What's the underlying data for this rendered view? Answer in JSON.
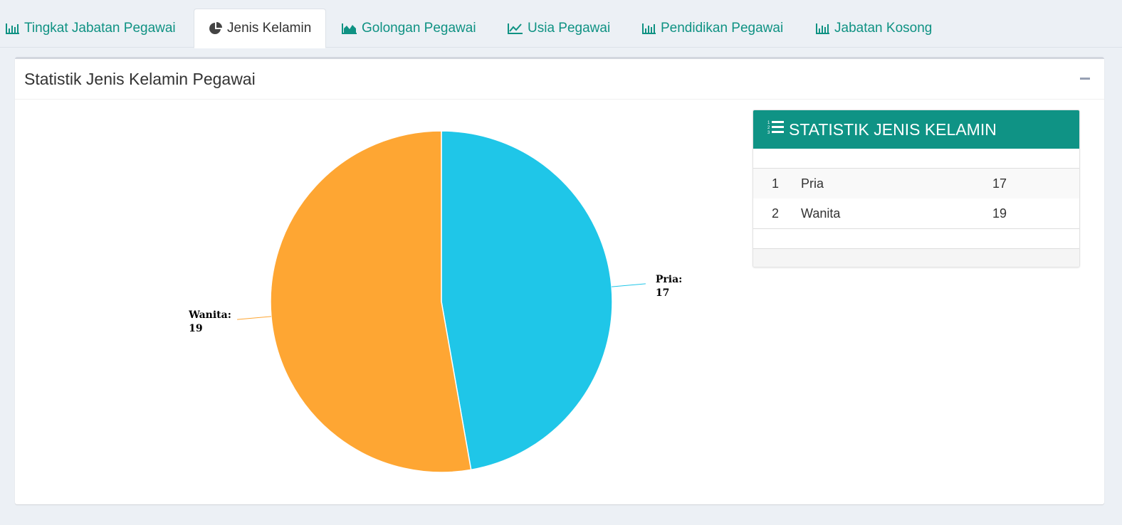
{
  "tabs": [
    {
      "label": "Tingkat Jabatan Pegawai",
      "icon": "bar-chart-icon",
      "active": false
    },
    {
      "label": "Jenis Kelamin",
      "icon": "pie-chart-icon",
      "active": true
    },
    {
      "label": "Golongan Pegawai",
      "icon": "area-chart-icon",
      "active": false
    },
    {
      "label": "Usia Pegawai",
      "icon": "line-chart-icon",
      "active": false
    },
    {
      "label": "Pendidikan Pegawai",
      "icon": "bar-chart-icon",
      "active": false
    },
    {
      "label": "Jabatan Kosong",
      "icon": "bar-chart-icon",
      "active": false
    }
  ],
  "box": {
    "title": "Statistik Jenis Kelamin Pegawai",
    "collapse_icon": "minus-icon"
  },
  "stat_panel": {
    "title": "STATISTIK JENIS KELAMIN",
    "icon": "list-ol-icon",
    "rows": [
      {
        "no": "1",
        "name": "Pria",
        "value": "17"
      },
      {
        "no": "2",
        "name": "Wanita",
        "value": "19"
      }
    ]
  },
  "colors": {
    "accent": "#0f9385",
    "tab_text": "#0f9283",
    "pria": "#1fc6e8",
    "wanita": "#fea633"
  },
  "chart_data": {
    "type": "pie",
    "categories": [
      "Pria",
      "Wanita"
    ],
    "values": [
      17,
      19
    ],
    "colors": [
      "#1fc6e8",
      "#fea633"
    ],
    "title": ""
  }
}
